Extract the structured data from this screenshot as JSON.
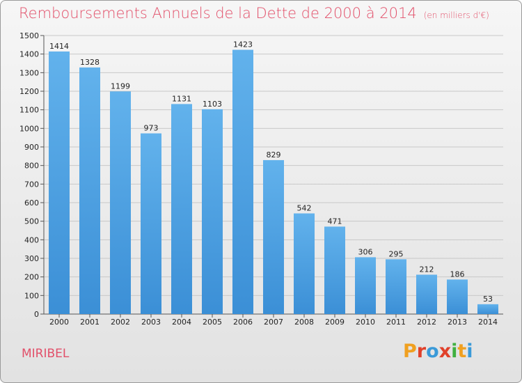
{
  "title": "Remboursements Annuels de la Dette de 2000 à 2014",
  "subtitle": "(en milliers d'€)",
  "commune": "MIRIBEL",
  "logo": {
    "letters": [
      "P",
      "r",
      "o",
      "x",
      "i",
      "t",
      "i"
    ],
    "colors": [
      "#f0a020",
      "#e0402a",
      "#3a9ad8",
      "#e0402a",
      "#40b040",
      "#f0a020",
      "#3a9ad8"
    ]
  },
  "colors": {
    "bar": "#3b8fd6",
    "bar_light": "#62b2ec",
    "title": "#e2506a",
    "grid": "#c8c8c8"
  },
  "chart_data": {
    "type": "bar",
    "categories": [
      "2000",
      "2001",
      "2002",
      "2003",
      "2004",
      "2005",
      "2006",
      "2007",
      "2008",
      "2009",
      "2010",
      "2011",
      "2012",
      "2013",
      "2014"
    ],
    "values": [
      1414,
      1328,
      1199,
      973,
      1131,
      1103,
      1423,
      829,
      542,
      471,
      306,
      295,
      212,
      186,
      53
    ],
    "title": "Remboursements Annuels de la Dette de 2000 à 2014",
    "ylim": [
      0,
      1500
    ],
    "yticks": [
      0,
      100,
      200,
      300,
      400,
      500,
      600,
      700,
      800,
      900,
      1000,
      1100,
      1200,
      1300,
      1400,
      1500
    ],
    "grid": true,
    "data_labels": true
  }
}
